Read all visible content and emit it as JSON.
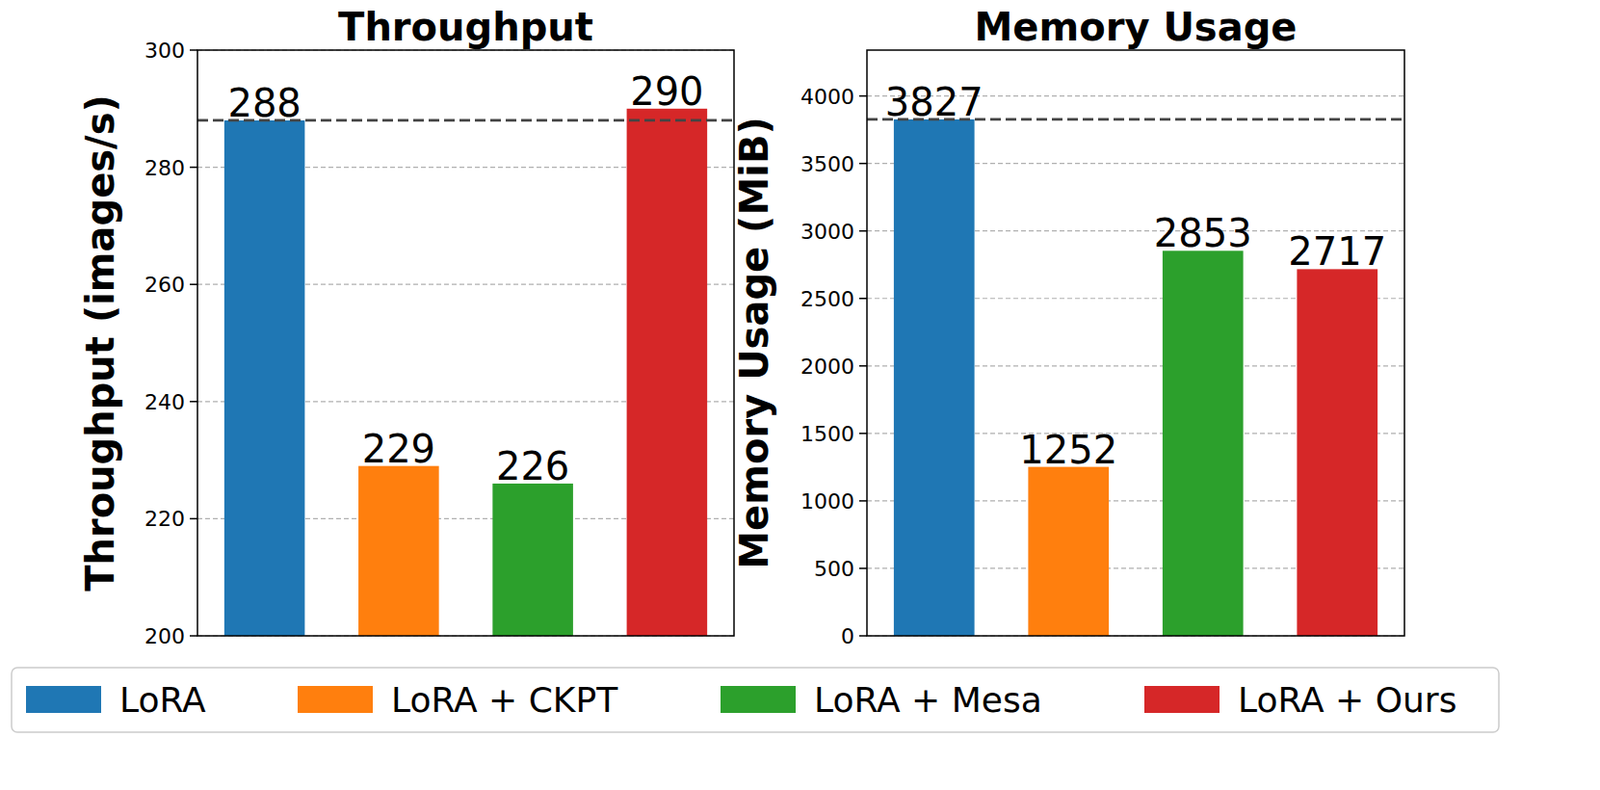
{
  "chart_data": [
    {
      "type": "bar",
      "title": "Throughput",
      "y_label": "Throughput (images/s)",
      "categories": [
        "LoRA",
        "LoRA + CKPT",
        "LoRA + Mesa",
        "LoRA + Ours"
      ],
      "values": [
        288,
        229,
        226,
        290
      ],
      "colors": [
        "#1f77b4",
        "#ff7f0e",
        "#2ca02c",
        "#d62728"
      ],
      "ylim": [
        200,
        300
      ],
      "yticks": [
        200,
        220,
        240,
        260,
        280,
        300
      ],
      "grid": true,
      "data_labels": true,
      "tick_labels": "y",
      "legend": "bottom"
    },
    {
      "type": "bar",
      "title": "Memory Usage",
      "y_label": "Memory Usage (MiB)",
      "categories": [
        null,
        null,
        null,
        null
      ],
      "values": [
        3827,
        1252,
        2853,
        2717
      ],
      "colors": [
        "#1f77b4",
        "#ff7f0e",
        "#2ca02c",
        "#d62728"
      ],
      "ylim": [
        0,
        4340
      ],
      "yticks": [
        0,
        500,
        1000,
        1500,
        2000,
        2500,
        3000,
        3500,
        4000
      ],
      "grid": true,
      "data_labels": true,
      "tick_labels": "y"
    }
  ]
}
